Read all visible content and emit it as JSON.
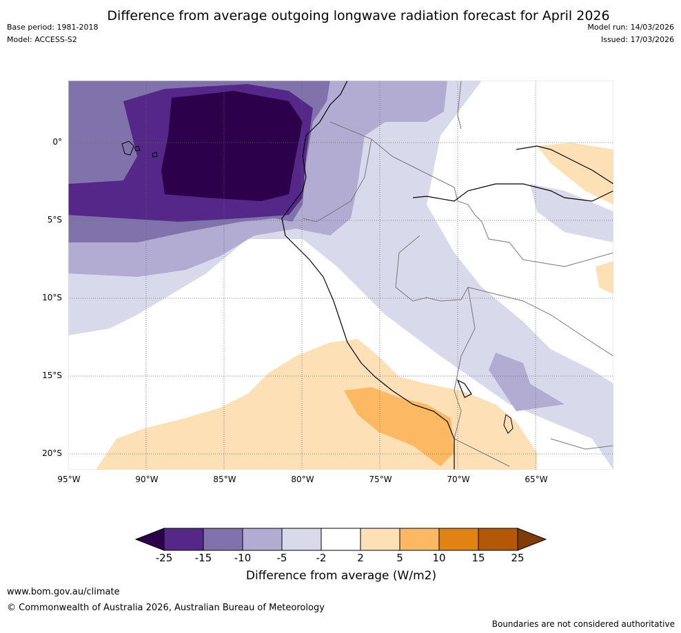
{
  "header": {
    "title": "Difference from average outgoing longwave radiation forecast for April 2026",
    "base_period": "Base period: 1981-2018",
    "model": "Model: ACCESS-S2",
    "model_run": "Model run: 14/03/2026",
    "issued": "Issued: 17/03/2026"
  },
  "map": {
    "lat_labels": [
      "0°",
      "5°S",
      "10°S",
      "15°S",
      "20°S"
    ],
    "lon_labels": [
      "95°W",
      "90°W",
      "85°W",
      "80°W",
      "75°W",
      "70°W",
      "65°W"
    ]
  },
  "legend": {
    "title": "Difference from average (W/m2)",
    "ticks": [
      "-25",
      "-15",
      "-10",
      "-5",
      "-2",
      "2",
      "5",
      "10",
      "15",
      "25"
    ],
    "colors": [
      "#2d004b",
      "#542788",
      "#8073ac",
      "#b2abd2",
      "#d8daeb",
      "#ffffff",
      "#fee0b6",
      "#fdb863",
      "#e08214",
      "#b35806",
      "#7f3b08"
    ]
  },
  "footer": {
    "url": "www.bom.gov.au/climate",
    "copyright": "© Commonwealth of Australia 2026, Australian Bureau of Meteorology",
    "disclaimer": "Boundaries are not considered authoritative"
  }
}
